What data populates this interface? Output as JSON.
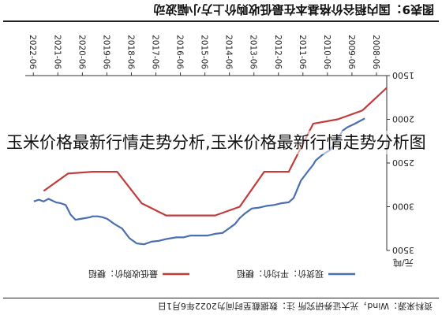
{
  "figure": {
    "title": "图表9：国内稻谷价格基本在最低收购价上方小幅波动",
    "source": "资料来源：Wind，光大证券研究所 注：数据截至时间为2022年6月1日"
  },
  "caption": "玉米价格最新行情走势分析,玉米价格最新行情走势分析图",
  "chart_data": {
    "type": "line",
    "ylabel": "元/吨",
    "ylim": [
      1500,
      3500
    ],
    "yticks": [
      1500,
      2000,
      2500,
      3000,
      3500
    ],
    "xticks": [
      "2008-06",
      "2009-06",
      "2010-06",
      "2011-06",
      "2012-06",
      "2013-06",
      "2014-06",
      "2015-06",
      "2016-06",
      "2017-06",
      "2018-06",
      "2019-06",
      "2020-06",
      "2021-06",
      "2022-06"
    ],
    "xlim": [
      2008.0,
      2022.75
    ],
    "legend_position": "top",
    "series": [
      {
        "name": "现货价：平均价：粳稻",
        "color": "#4a6fb0",
        "x": [
          2008.9,
          2009.3,
          2009.6,
          2009.8,
          2010.0,
          2010.3,
          2010.6,
          2010.9,
          2011.0,
          2011.2,
          2011.5,
          2011.8,
          2012.0,
          2012.3,
          2012.6,
          2012.9,
          2013.2,
          2013.5,
          2013.8,
          2014.0,
          2014.2,
          2014.5,
          2014.7,
          2015.0,
          2015.3,
          2015.6,
          2016.0,
          2016.3,
          2016.6,
          2016.8,
          2017.0,
          2017.3,
          2017.6,
          2017.9,
          2018.2,
          2018.5,
          2018.8,
          2019.1,
          2019.4,
          2019.6,
          2019.8,
          2020.0,
          2020.1,
          2020.3,
          2020.5,
          2020.7,
          2020.9,
          2021.1,
          2021.3,
          2021.5,
          2021.8,
          2022.0,
          2022.2,
          2022.4
        ],
        "y": [
          1990,
          2050,
          2090,
          2130,
          2220,
          2350,
          2400,
          2470,
          2520,
          2590,
          2700,
          2900,
          2950,
          2960,
          2980,
          2990,
          3010,
          3020,
          3080,
          3130,
          3200,
          3260,
          3300,
          3310,
          3330,
          3330,
          3330,
          3350,
          3350,
          3360,
          3370,
          3390,
          3400,
          3430,
          3420,
          3360,
          3250,
          3200,
          3140,
          3120,
          3110,
          3110,
          3120,
          3130,
          3140,
          3150,
          3090,
          2980,
          2960,
          2950,
          2910,
          2940,
          2920,
          2940
        ]
      },
      {
        "name": "最低收购价：粳稻",
        "color": "#c23b3b",
        "x": [
          2008.0,
          2009.0,
          2010.0,
          2011.0,
          2012.0,
          2013.0,
          2014.0,
          2015.0,
          2016.0,
          2017.0,
          2018.0,
          2019.0,
          2020.0,
          2021.0,
          2022.0
        ],
        "y": [
          1640,
          1900,
          2000,
          2050,
          2600,
          2600,
          3000,
          3100,
          3100,
          3100,
          2960,
          2600,
          2600,
          2620,
          2820
        ]
      }
    ]
  }
}
